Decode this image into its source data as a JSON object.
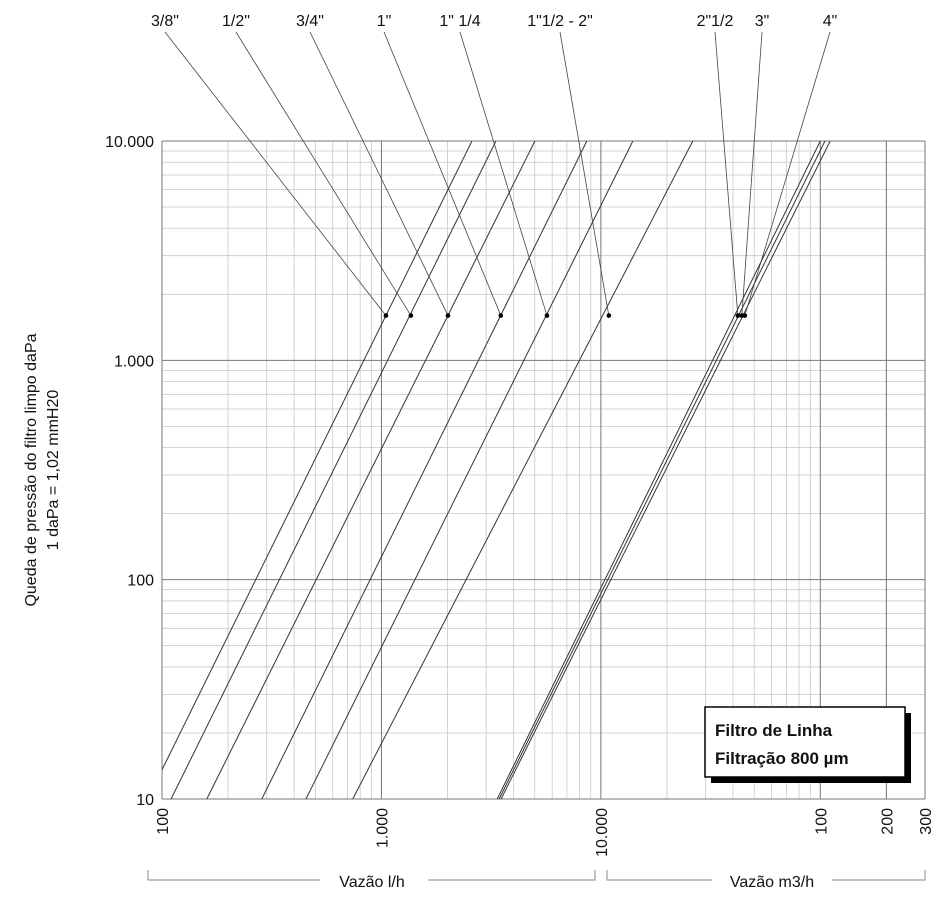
{
  "chart_data": {
    "type": "line",
    "log_x": true,
    "log_y": true,
    "grid": true,
    "ylabel": [
      "Queda de pressão do filtro limpo daPa",
      "1 daPa = 1,02 mmH20"
    ],
    "xlabel_left": "Vazão l/h",
    "xlabel_right": "Vazão m3/h",
    "note": [
      "Filtro de Linha",
      "Filtração 800 µm"
    ],
    "xlim": [
      100,
      300000
    ],
    "ylim": [
      10,
      10000
    ],
    "xticks": [
      100,
      {
        "value": 1000,
        "label": "1.000"
      },
      {
        "value": 10000,
        "label": "10.000"
      },
      {
        "value": 100000,
        "label": "100"
      },
      {
        "value": 200000,
        "label": "200"
      },
      {
        "value": 300000,
        "label": "300"
      }
    ],
    "yticks": [
      10,
      100,
      {
        "value": 1000,
        "label": "1.000"
      },
      {
        "value": 10000,
        "label": "10.000"
      }
    ],
    "color": "#333333",
    "series": [
      {
        "name": "3/8\"",
        "x": [
          86,
          2585
        ],
        "values": [
          10,
          10000
        ],
        "marker_x": 1048,
        "marker_y": 1600
      },
      {
        "name": "1/2\"",
        "x": [
          110,
          3325
        ],
        "values": [
          10,
          10000
        ],
        "marker_x": 1362,
        "marker_y": 1600
      },
      {
        "name": "3/4\"",
        "x": [
          160,
          5005
        ],
        "values": [
          10,
          10000
        ],
        "marker_x": 2010,
        "marker_y": 1600
      },
      {
        "name": "1\"",
        "x": [
          285,
          8630
        ],
        "values": [
          10,
          10000
        ],
        "marker_x": 3500,
        "marker_y": 1600
      },
      {
        "name": "1\" 1/4",
        "x": [
          453,
          13990
        ],
        "values": [
          10,
          10000
        ],
        "marker_x": 5680,
        "marker_y": 1600
      },
      {
        "name": "1\"1/2 - 2\"",
        "x": [
          740,
          26240
        ],
        "values": [
          10,
          10000
        ],
        "marker_x": 10870,
        "marker_y": 1600
      },
      {
        "name": "2\"1/2",
        "x": [
          3370,
          100000
        ],
        "values": [
          10,
          10000
        ],
        "marker_x": 42100,
        "marker_y": 1600
      },
      {
        "name": "3\"",
        "x": [
          3440,
          105000
        ],
        "values": [
          10,
          10000
        ],
        "marker_x": 43900,
        "marker_y": 1600
      },
      {
        "name": "4\"",
        "x": [
          3510,
          111000
        ],
        "values": [
          10,
          10000
        ],
        "marker_x": 45300,
        "marker_y": 1600
      }
    ]
  }
}
